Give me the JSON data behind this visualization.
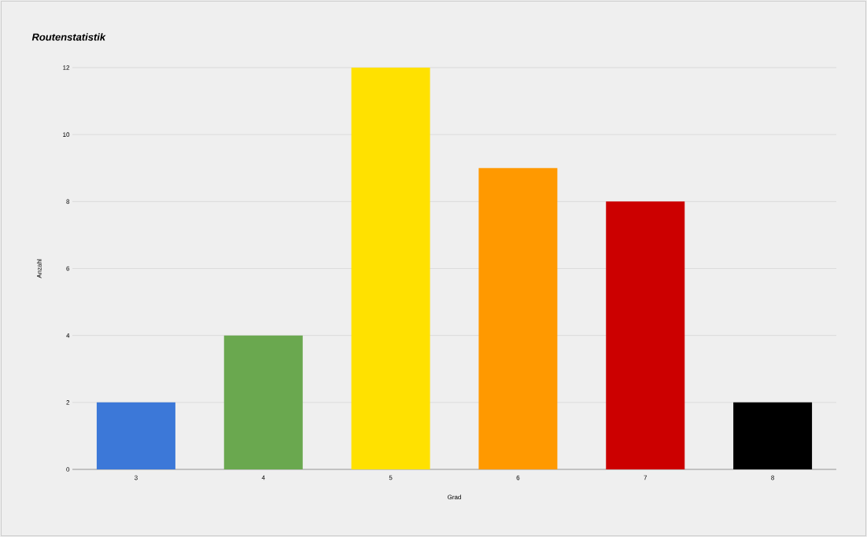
{
  "chart_data": {
    "type": "bar",
    "title": "Routenstatistik",
    "xlabel": "Grad",
    "ylabel": "Anzahl",
    "categories": [
      "3",
      "4",
      "5",
      "6",
      "7",
      "8"
    ],
    "values": [
      2,
      4,
      12,
      9,
      8,
      2
    ],
    "colors": [
      "#3c78d8",
      "#6aa84f",
      "#ffe100",
      "#ff9900",
      "#cc0000",
      "#000000"
    ],
    "ylim": [
      0,
      12
    ],
    "yticks": [
      0,
      2,
      4,
      6,
      8,
      10,
      12
    ],
    "grid": "y"
  }
}
